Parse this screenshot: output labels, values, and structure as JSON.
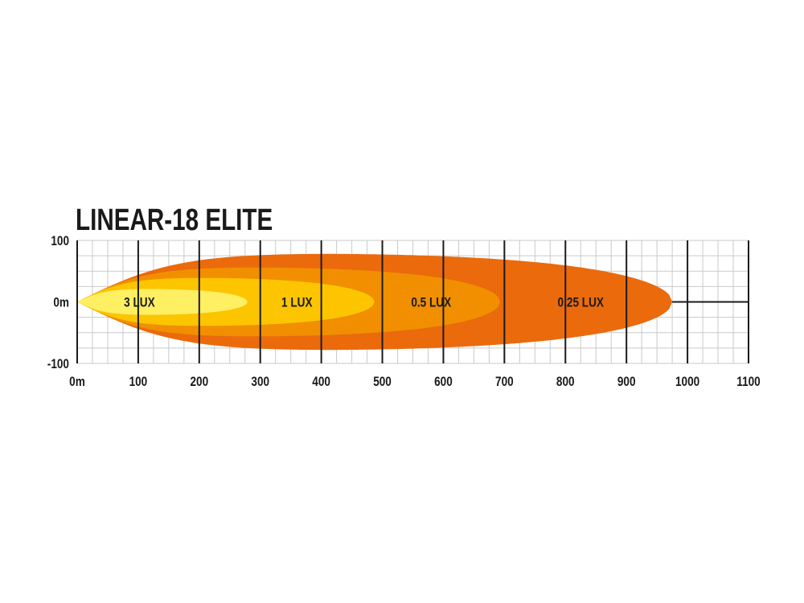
{
  "chart_data": {
    "type": "area",
    "title": "LINEAR-18 ELITE",
    "xlabel": "",
    "ylabel": "",
    "xlim": [
      0,
      1100
    ],
    "ylim": [
      -100,
      100
    ],
    "x_ticks": [
      "0m",
      "100",
      "200",
      "300",
      "400",
      "500",
      "600",
      "700",
      "800",
      "900",
      "1000",
      "1100"
    ],
    "y_ticks": [
      "100",
      "0m",
      "-100"
    ],
    "grid": true,
    "series": [
      {
        "name": "0.25 LUX",
        "reach": 975,
        "max_half_width": 78,
        "color": "#EA6A0C"
      },
      {
        "name": "0.5 LUX",
        "reach": 693,
        "max_half_width": 56,
        "color": "#F18F00"
      },
      {
        "name": "1 LUX",
        "reach": 487,
        "max_half_width": 39,
        "color": "#FCC500"
      },
      {
        "name": "3 LUX",
        "reach": 279,
        "max_half_width": 21,
        "color": "#FFEF63"
      }
    ]
  }
}
